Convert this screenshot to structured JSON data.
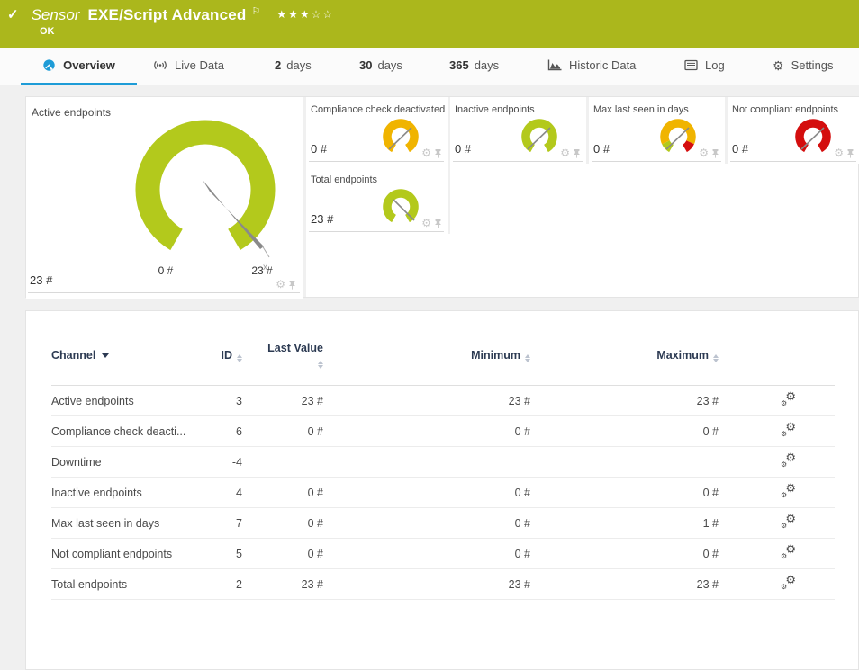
{
  "header": {
    "kind": "Sensor",
    "title": "EXE/Script Advanced",
    "status": "OK",
    "stars_filled": "★★★",
    "stars_empty": "☆☆",
    "check_mark": "✓",
    "flag": "⚐"
  },
  "tabs": [
    {
      "label": "Overview",
      "active": true
    },
    {
      "label": "Live Data"
    },
    {
      "num": "2",
      "label": "days"
    },
    {
      "num": "30",
      "label": "days"
    },
    {
      "num": "365",
      "label": "days"
    },
    {
      "label": "Historic Data"
    },
    {
      "label": "Log"
    },
    {
      "label": "Settings"
    }
  ],
  "colors": {
    "banner_green": "#abb71c",
    "gauge_green": "#b3c91c",
    "gauge_amber": "#f0b400",
    "gauge_red": "#d40e0e",
    "tab_accent_blue": "#1e9cd7",
    "needle_gray": "#8a8a8a"
  },
  "gauges": {
    "big": {
      "title": "Active endpoints",
      "value": "23 #",
      "min_label": "0 #",
      "max_label": "23 #",
      "mean_marker": "x̄"
    },
    "tiles": [
      {
        "title": "Compliance check deactivated",
        "value": "0 #"
      },
      {
        "title": "Inactive endpoints",
        "value": "0 #"
      },
      {
        "title": "Max last seen in days",
        "value": "0 #"
      },
      {
        "title": "Not compliant endpoints",
        "value": "0 #"
      },
      {
        "title": "Total endpoints",
        "value": "23 #"
      }
    ]
  },
  "table": {
    "columns": [
      "Channel",
      "ID",
      "Last Value",
      "Minimum",
      "Maximum"
    ],
    "rows": [
      {
        "channel": "Active endpoints",
        "id": "3",
        "last": "23 #",
        "min": "23 #",
        "max": "23 #"
      },
      {
        "channel": "Compliance check deacti...",
        "id": "6",
        "last": "0 #",
        "min": "0 #",
        "max": "0 #"
      },
      {
        "channel": "Downtime",
        "id": "-4",
        "last": "",
        "min": "",
        "max": ""
      },
      {
        "channel": "Inactive endpoints",
        "id": "4",
        "last": "0 #",
        "min": "0 #",
        "max": "0 #"
      },
      {
        "channel": "Max last seen in days",
        "id": "7",
        "last": "0 #",
        "min": "0 #",
        "max": "1 #"
      },
      {
        "channel": "Not compliant endpoints",
        "id": "5",
        "last": "0 #",
        "min": "0 #",
        "max": "0 #"
      },
      {
        "channel": "Total endpoints",
        "id": "2",
        "last": "23 #",
        "min": "23 #",
        "max": "23 #"
      }
    ]
  }
}
